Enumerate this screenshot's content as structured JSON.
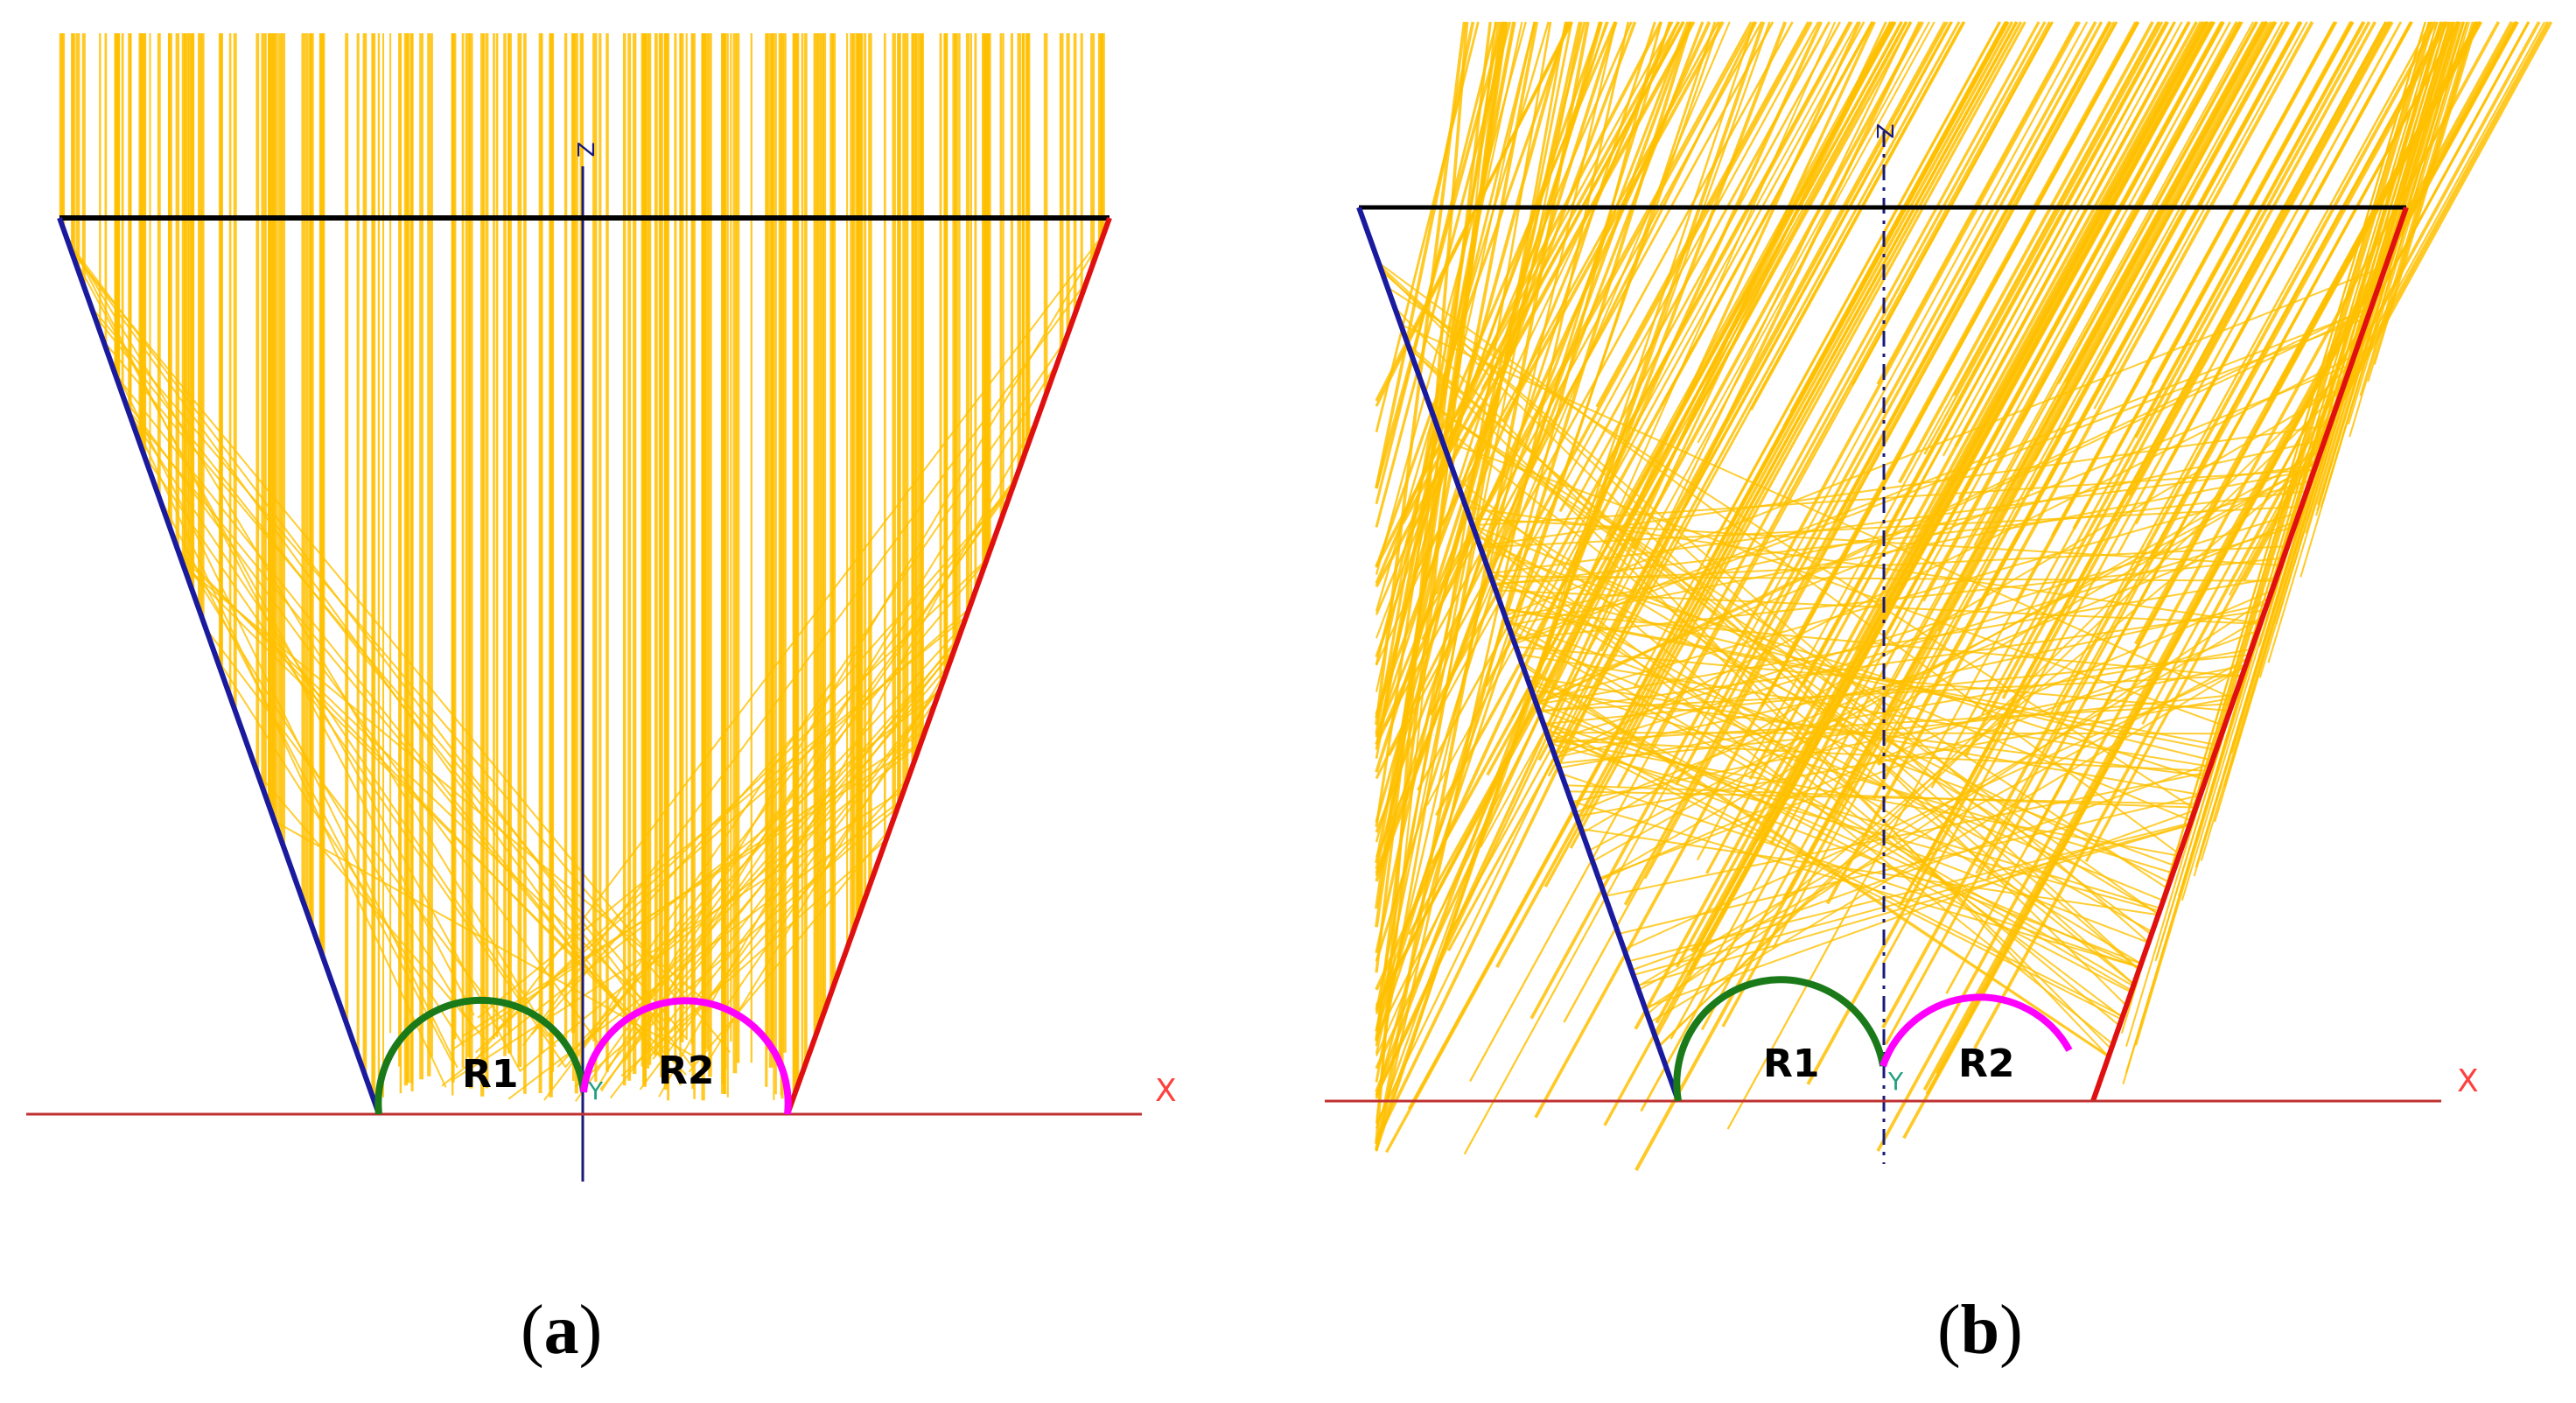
{
  "panels": [
    {
      "id": "a",
      "caption_letter": "a",
      "z_axis_label": "Z",
      "x_axis_label": "X",
      "y_axis_label": "Y",
      "receiver_left_label": "R1",
      "receiver_right_label": "R2",
      "ray_direction": "vertical"
    },
    {
      "id": "b",
      "caption_letter": "b",
      "z_axis_label": "Z",
      "x_axis_label": "X",
      "y_axis_label": "Y",
      "receiver_left_label": "R1",
      "receiver_right_label": "R2",
      "ray_direction": "oblique"
    }
  ],
  "colors": {
    "ray": "#FFC000",
    "aperture": "#000000",
    "left_mirror": "#1a1a9e",
    "right_mirror": "#e01010",
    "receiver_left": "#1a7a1a",
    "receiver_right": "#ff00ff",
    "x_axis": "#c03030",
    "z_axis": "#1a1a7a",
    "y_label": "#20a080",
    "x_label": "#ff4040"
  }
}
